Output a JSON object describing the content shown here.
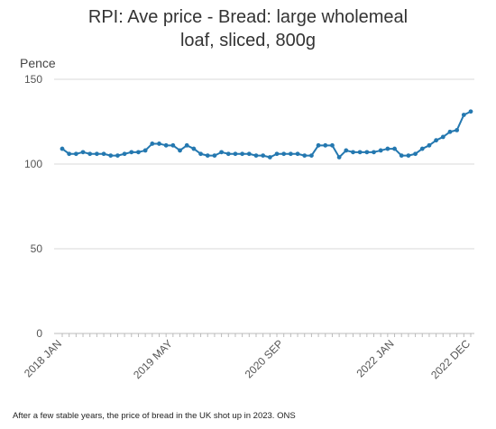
{
  "chart_data": {
    "type": "line",
    "title_lines": [
      "RPI: Ave price - Bread: large wholemeal",
      "loaf, sliced, 800g"
    ],
    "ylabel": "Pence",
    "xlabel": "",
    "ylim": [
      0,
      150
    ],
    "yticks": [
      0,
      50,
      100,
      150
    ],
    "grid": "horizontal",
    "legend": "none",
    "x_tick_labels": [
      {
        "label": "2018 JAN",
        "index": 0
      },
      {
        "label": "2019 MAY",
        "index": 16
      },
      {
        "label": "2020 SEP",
        "index": 32
      },
      {
        "label": "2022 JAN",
        "index": 48
      },
      {
        "label": "2022 DEC",
        "index": 59
      }
    ],
    "series": [
      {
        "color": "#2478b0",
        "values": [
          109,
          106,
          106,
          107,
          106,
          106,
          106,
          105,
          105,
          106,
          107,
          107,
          108,
          112,
          112,
          111,
          111,
          108,
          111,
          109,
          106,
          105,
          105,
          107,
          106,
          106,
          106,
          106,
          105,
          105,
          104,
          106,
          106,
          106,
          106,
          105,
          105,
          111,
          111,
          111,
          104,
          108,
          107,
          107,
          107,
          107,
          108,
          109,
          109,
          105,
          105,
          106,
          109,
          111,
          114,
          116,
          119,
          120,
          129,
          131
        ]
      }
    ]
  },
  "caption": "After a few stable years, the price of bread in the UK shot up in 2023. ONS"
}
